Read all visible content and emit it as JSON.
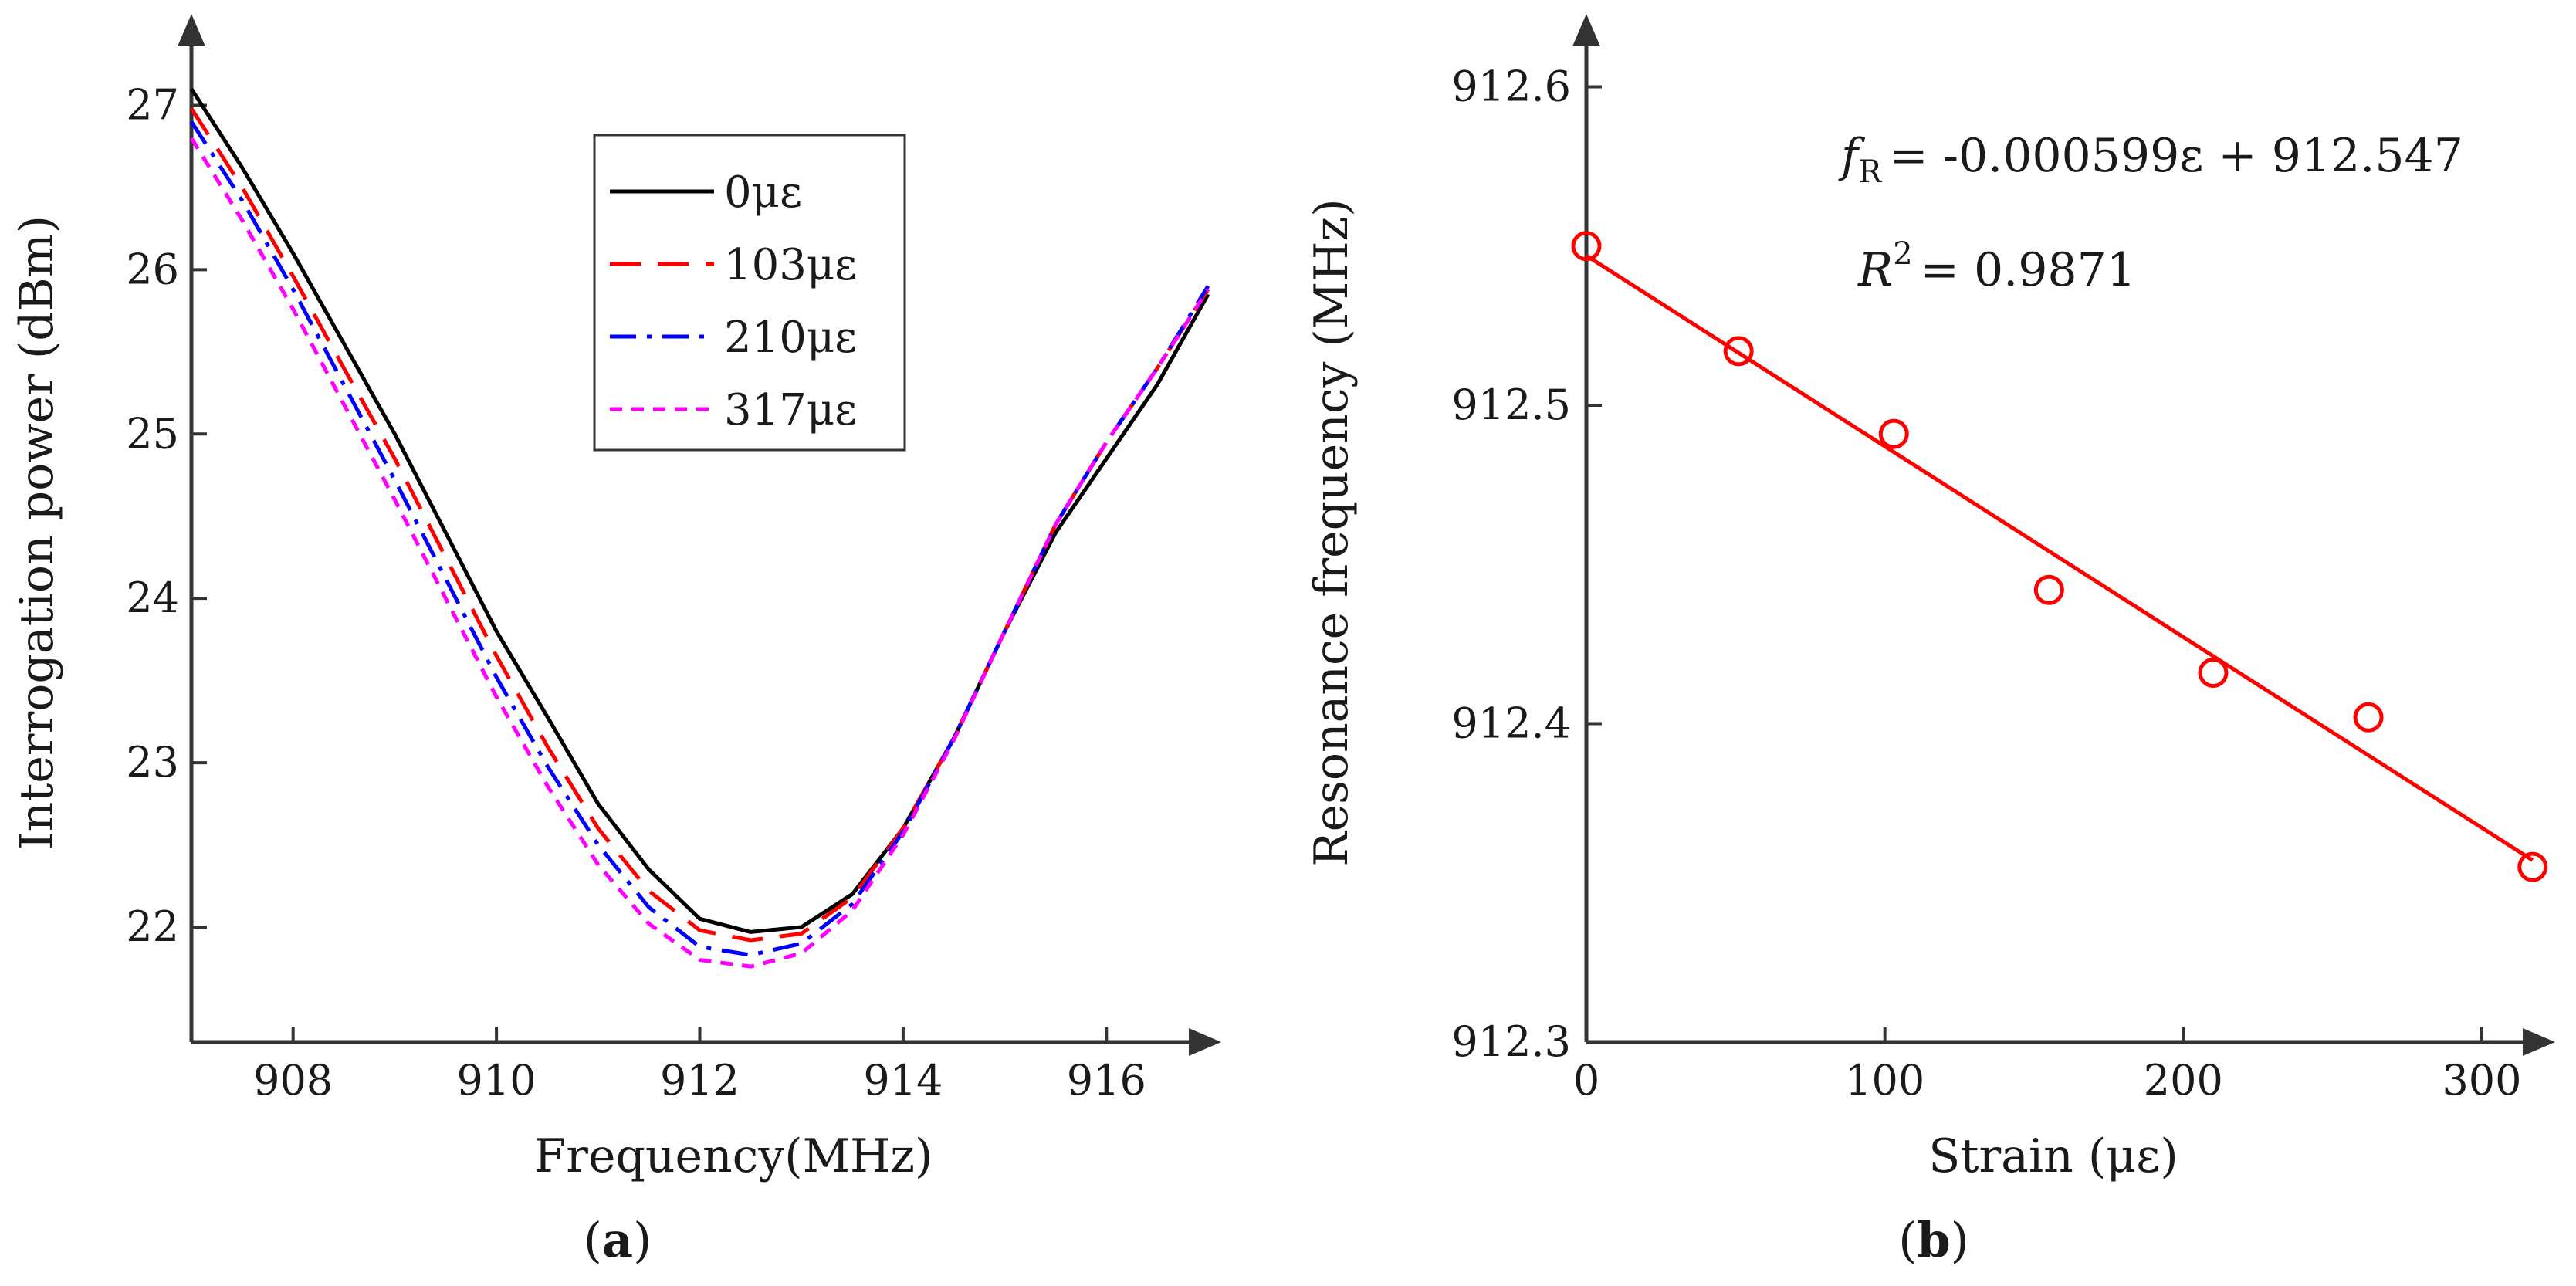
{
  "chart_data": [
    {
      "panel": "(a)",
      "panel_letter": "a",
      "type": "line",
      "title": "",
      "xlabel": "Frequency(MHz)",
      "ylabel": "Interrogation power (dBm)",
      "xlim": [
        907,
        917
      ],
      "ylim": [
        21.3,
        27.5
      ],
      "xticks": [
        908,
        910,
        912,
        914,
        916
      ],
      "yticks": [
        22,
        23,
        24,
        25,
        26,
        27
      ],
      "grid": false,
      "legend_position": "top-right",
      "x": [
        907,
        907.5,
        908,
        908.5,
        909,
        909.5,
        910,
        910.5,
        911,
        911.5,
        912,
        912.5,
        913,
        913.5,
        914,
        914.5,
        915,
        915.5,
        916,
        916.5,
        917
      ],
      "series": [
        {
          "name": "0με",
          "color": "#000000",
          "dash": "solid",
          "values": [
            27.1,
            26.62,
            26.1,
            25.55,
            25.0,
            24.4,
            23.8,
            23.28,
            22.75,
            22.35,
            22.05,
            21.97,
            22.0,
            22.2,
            22.6,
            23.15,
            23.8,
            24.4,
            24.85,
            25.3,
            25.85
          ]
        },
        {
          "name": "103με",
          "color": "#ff0000",
          "dash": "long-dash",
          "values": [
            26.98,
            26.5,
            25.96,
            25.4,
            24.85,
            24.25,
            23.65,
            23.1,
            22.6,
            22.22,
            21.98,
            21.92,
            21.96,
            22.18,
            22.6,
            23.15,
            23.8,
            24.45,
            24.95,
            25.4,
            25.88
          ]
        },
        {
          "name": "210με",
          "color": "#0000ff",
          "dash": "dash-dot",
          "values": [
            26.9,
            26.42,
            25.88,
            25.3,
            24.72,
            24.12,
            23.52,
            22.98,
            22.5,
            22.12,
            21.88,
            21.83,
            21.9,
            22.14,
            22.58,
            23.15,
            23.8,
            24.45,
            24.95,
            25.4,
            25.9
          ]
        },
        {
          "name": "317με",
          "color": "#ff00ff",
          "dash": "short-dash",
          "values": [
            26.8,
            26.3,
            25.76,
            25.18,
            24.6,
            24.0,
            23.4,
            22.86,
            22.38,
            22.02,
            21.8,
            21.76,
            21.84,
            22.1,
            22.56,
            23.14,
            23.8,
            24.45,
            24.95,
            25.4,
            25.88
          ]
        }
      ]
    },
    {
      "panel": "(b)",
      "panel_letter": "b",
      "type": "scatter",
      "title": "",
      "xlabel": "Strain (με)",
      "ylabel": "Resonance frequency (MHz)",
      "xlim": [
        0,
        320
      ],
      "ylim": [
        912.3,
        912.62
      ],
      "xticks": [
        0,
        100,
        200,
        300
      ],
      "yticks": [
        "912.3",
        "912.4",
        "912.5",
        "912.6"
      ],
      "grid": false,
      "color": "#ff0000",
      "points": {
        "x": [
          0,
          51,
          103,
          155,
          210,
          262,
          317
        ],
        "y": [
          912.55,
          912.517,
          912.491,
          912.442,
          912.416,
          912.402,
          912.355
        ]
      },
      "fit": {
        "slope": -0.000599,
        "intercept": 912.547,
        "x_range": [
          0,
          317
        ]
      },
      "equation": {
        "var": "f",
        "sub": "R",
        "rhs": "= -0.000599ε + 912.547"
      },
      "r2": {
        "var": "R",
        "sup": "2",
        "rhs": "= 0.9871"
      }
    }
  ]
}
